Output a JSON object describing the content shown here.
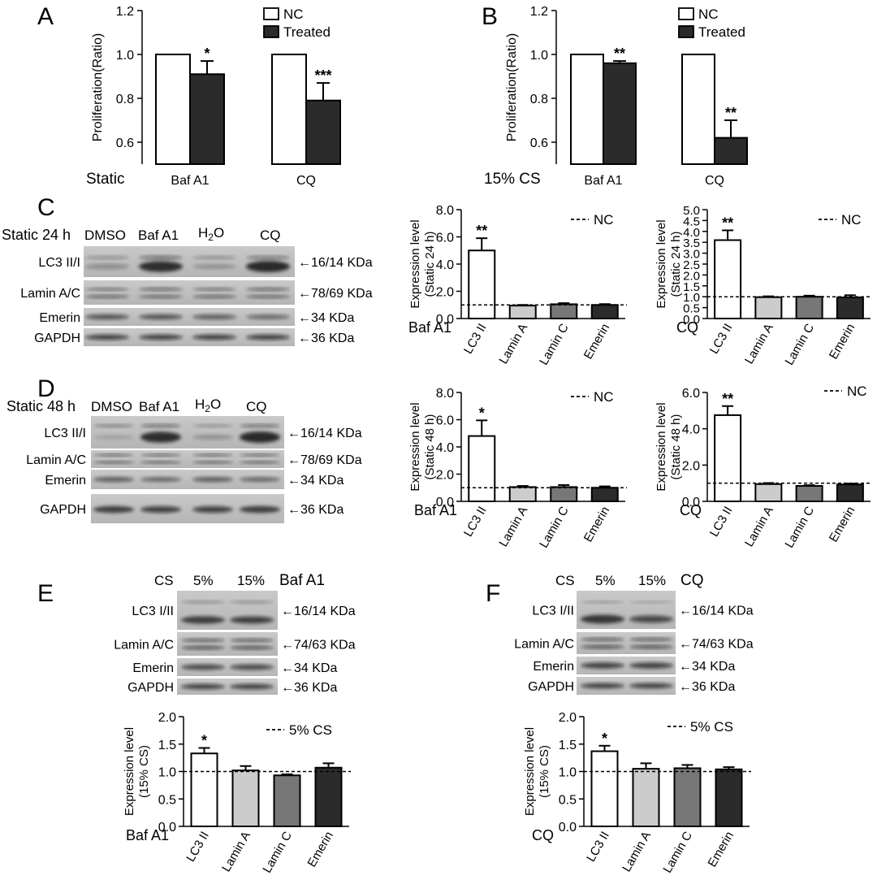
{
  "panels": {
    "A": {
      "letter": "A",
      "condition": "Static",
      "chart_data": {
        "type": "bar",
        "ylabel": "Proliferation(Ratio)",
        "ylim": [
          0.5,
          1.2
        ],
        "yticks": [
          "0.6",
          "0.8",
          "1.0",
          "1.2"
        ],
        "categories": [
          "Baf A1",
          "CQ"
        ],
        "series": [
          {
            "name": "NC",
            "values": [
              1.0,
              1.0
            ],
            "color": "#ffffff"
          },
          {
            "name": "Treated",
            "values": [
              0.91,
              0.79
            ],
            "errors": [
              0.06,
              0.08
            ],
            "color": "#2b2b2b"
          }
        ],
        "significance": [
          "*",
          "***"
        ]
      }
    },
    "B": {
      "letter": "B",
      "condition": "15% CS",
      "chart_data": {
        "type": "bar",
        "ylabel": "Proliferation(Ratio)",
        "ylim": [
          0.5,
          1.2
        ],
        "yticks": [
          "0.6",
          "0.8",
          "1.0",
          "1.2"
        ],
        "categories": [
          "Baf A1",
          "CQ"
        ],
        "series": [
          {
            "name": "NC",
            "values": [
              1.0,
              1.0
            ],
            "color": "#ffffff"
          },
          {
            "name": "Treated",
            "values": [
              0.96,
              0.62
            ],
            "errors": [
              0.01,
              0.08
            ],
            "color": "#2b2b2b"
          }
        ],
        "significance": [
          "**",
          "**"
        ]
      }
    },
    "C": {
      "letter": "C",
      "blot": {
        "title": "Static 24 h",
        "lanes": [
          "DMSO",
          "Baf A1",
          "H",
          "CQ"
        ],
        "h2o_sub": "2",
        "h2o_tail": "O",
        "rows": [
          {
            "label": "LC3 II/I",
            "size": "16/14 KDa"
          },
          {
            "label": "Lamin A/C",
            "size": "78/69 KDa"
          },
          {
            "label": "Emerin",
            "size": "34 KDa"
          },
          {
            "label": "GAPDH",
            "size": "36 KDa"
          }
        ]
      },
      "chart_left": {
        "type": "bar",
        "ylabel_lines": [
          "Expression level",
          "(Static 24 h)"
        ],
        "ylim": [
          0,
          8
        ],
        "yticks": [
          "0.0",
          "2.0",
          "4.0",
          "6.0",
          "8.0"
        ],
        "group_label": "Baf A1",
        "legend": "NC",
        "categories": [
          "LC3 II",
          "Lamin A",
          "Lamin C",
          "Emerin"
        ],
        "values": [
          5.0,
          0.95,
          1.05,
          1.0
        ],
        "errors": [
          0.9,
          0.05,
          0.08,
          0.06
        ],
        "colors": [
          "#ffffff",
          "#cccccc",
          "#777777",
          "#2b2b2b"
        ],
        "reference": 1.0,
        "significance": [
          "**",
          "",
          "",
          ""
        ]
      },
      "chart_right": {
        "type": "bar",
        "ylabel_lines": [
          "Expression level",
          "(Static 24 h)"
        ],
        "ylim": [
          0,
          5
        ],
        "yticks": [
          "0.0",
          "0.5",
          "1.0",
          "1.5",
          "2.0",
          "2.5",
          "3.0",
          "3.5",
          "4.0",
          "4.5",
          "5.0"
        ],
        "group_label": "CQ",
        "legend": "NC",
        "categories": [
          "LC3 II",
          "Lamin A",
          "Lamin C",
          "Emerin"
        ],
        "values": [
          3.6,
          0.98,
          1.0,
          0.97
        ],
        "errors": [
          0.45,
          0.04,
          0.05,
          0.1
        ],
        "colors": [
          "#ffffff",
          "#cccccc",
          "#777777",
          "#2b2b2b"
        ],
        "reference": 1.0,
        "significance": [
          "**",
          "",
          "",
          ""
        ]
      }
    },
    "D": {
      "letter": "D",
      "blot": {
        "title": "Static 48 h",
        "lanes": [
          "DMSO",
          "Baf A1",
          "H",
          "CQ"
        ],
        "h2o_sub": "2",
        "h2o_tail": "O",
        "rows": [
          {
            "label": "LC3 II/I",
            "size": "16/14 KDa"
          },
          {
            "label": "Lamin A/C",
            "size": "78/69 KDa"
          },
          {
            "label": "Emerin",
            "size": "34 KDa"
          },
          {
            "label": "GAPDH",
            "size": "36 KDa"
          }
        ]
      },
      "chart_left": {
        "type": "bar",
        "ylabel_lines": [
          "Expression level",
          "(Static 48 h)"
        ],
        "ylim": [
          0,
          8
        ],
        "yticks": [
          "0.0",
          "2.0",
          "4.0",
          "6.0",
          "8.0"
        ],
        "group_label": "Baf A1",
        "legend": "NC",
        "categories": [
          "LC3 II",
          "Lamin A",
          "Lamin C",
          "Emerin"
        ],
        "values": [
          4.8,
          1.05,
          1.05,
          1.0
        ],
        "errors": [
          1.15,
          0.08,
          0.15,
          0.1
        ],
        "colors": [
          "#ffffff",
          "#cccccc",
          "#777777",
          "#2b2b2b"
        ],
        "reference": 1.0,
        "significance": [
          "*",
          "",
          "",
          ""
        ]
      },
      "chart_right": {
        "type": "bar",
        "ylabel_lines": [
          "Expression level",
          "(Static 48 h)"
        ],
        "ylim": [
          0,
          6
        ],
        "yticks": [
          "0.0",
          "2.0",
          "4.0",
          "6.0"
        ],
        "group_label": "CQ",
        "legend": "NC",
        "categories": [
          "LC3 II",
          "Lamin A",
          "Lamin C",
          "Emerin"
        ],
        "values": [
          4.75,
          0.95,
          0.85,
          0.93
        ],
        "errors": [
          0.5,
          0.06,
          0.04,
          0.05
        ],
        "colors": [
          "#ffffff",
          "#cccccc",
          "#777777",
          "#2b2b2b"
        ],
        "reference": 1.0,
        "significance": [
          "**",
          "",
          "",
          ""
        ]
      }
    },
    "E": {
      "letter": "E",
      "blot": {
        "cs": "CS",
        "lanes": [
          "5%",
          "15%"
        ],
        "drug": "Baf A1",
        "rows": [
          {
            "label": "LC3 I/II",
            "size": "16/14 KDa"
          },
          {
            "label": "Lamin A/C",
            "size": "74/63 KDa"
          },
          {
            "label": "Emerin",
            "size": "34 KDa"
          },
          {
            "label": "GAPDH",
            "size": "36 KDa"
          }
        ]
      },
      "chart": {
        "type": "bar",
        "ylabel_lines": [
          "Expression level",
          "(15% CS)"
        ],
        "ylim": [
          0,
          2
        ],
        "yticks": [
          "0.0",
          "0.5",
          "1.0",
          "1.5",
          "2.0"
        ],
        "group_label": "Baf A1",
        "legend": "5% CS",
        "categories": [
          "LC3 II",
          "Lamin A",
          "Lamin C",
          "Emerin"
        ],
        "values": [
          1.33,
          1.02,
          0.93,
          1.07
        ],
        "errors": [
          0.1,
          0.08,
          0.02,
          0.08
        ],
        "colors": [
          "#ffffff",
          "#cccccc",
          "#777777",
          "#2b2b2b"
        ],
        "reference": 1.0,
        "significance": [
          "*",
          "",
          "",
          ""
        ]
      }
    },
    "F": {
      "letter": "F",
      "blot": {
        "cs": "CS",
        "lanes": [
          "5%",
          "15%"
        ],
        "drug": "CQ",
        "rows": [
          {
            "label": "LC3 I/II",
            "size": "16/14 KDa"
          },
          {
            "label": "Lamin A/C",
            "size": "74/63 KDa"
          },
          {
            "label": "Emerin",
            "size": "34 KDa"
          },
          {
            "label": "GAPDH",
            "size": "36 KDa"
          }
        ]
      },
      "chart": {
        "type": "bar",
        "ylabel_lines": [
          "Expression level",
          "(15% CS)"
        ],
        "ylim": [
          0,
          2
        ],
        "yticks": [
          "0.0",
          "0.5",
          "1.0",
          "1.5",
          "2.0"
        ],
        "group_label": "CQ",
        "legend": "5% CS",
        "categories": [
          "LC3 II",
          "Lamin A",
          "Lamin C",
          "Emerin"
        ],
        "values": [
          1.37,
          1.05,
          1.06,
          1.04
        ],
        "errors": [
          0.1,
          0.1,
          0.06,
          0.04
        ],
        "colors": [
          "#ffffff",
          "#cccccc",
          "#777777",
          "#2b2b2b"
        ],
        "reference": 1.0,
        "significance": [
          "*",
          "",
          "",
          ""
        ]
      }
    }
  }
}
